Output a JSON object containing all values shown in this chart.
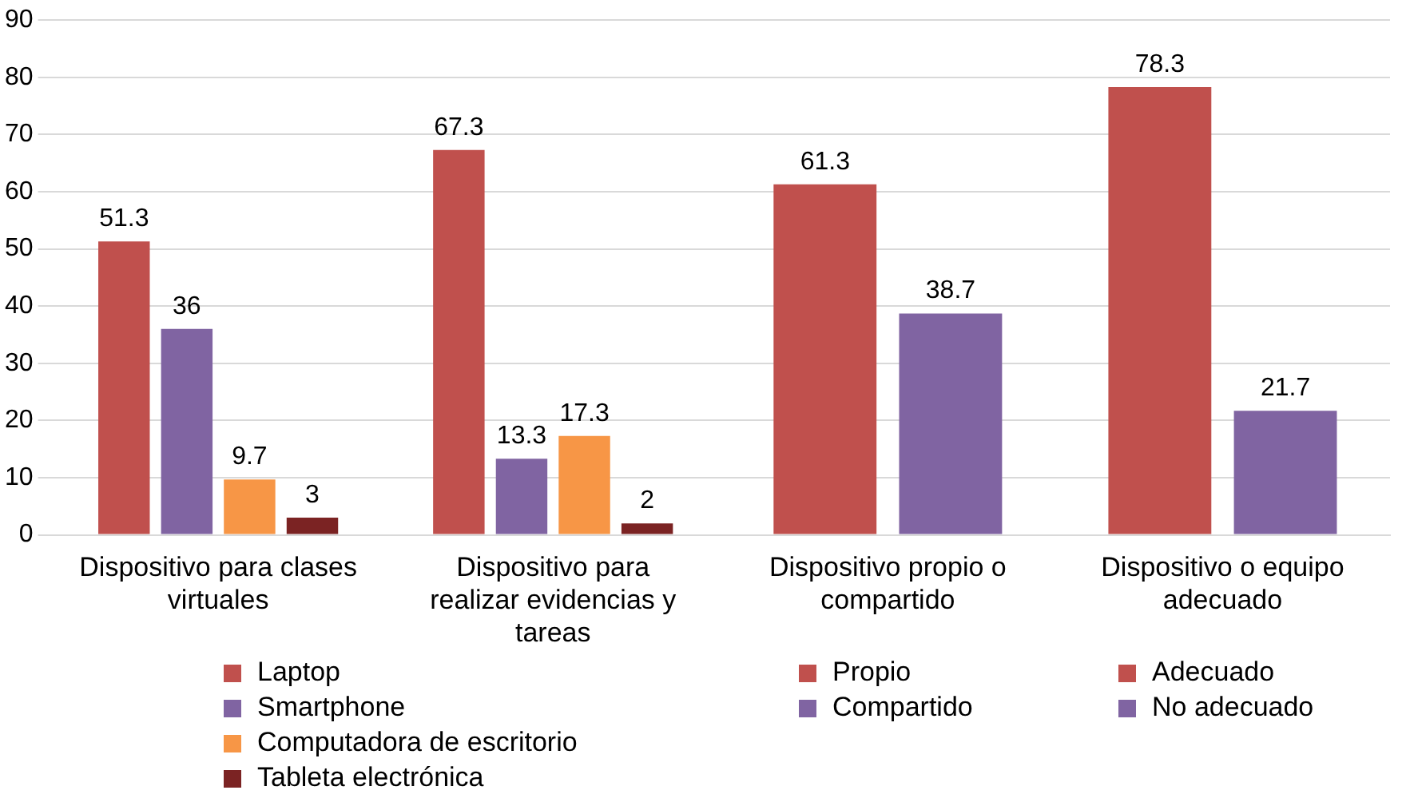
{
  "chart_data": {
    "type": "bar",
    "categories": [
      "Dispositivo para clases virtuales",
      "Dispositivo para realizar evidencias y tareas",
      "Dispositivo propio o compartido",
      "Dispositivo o equipo adecuado"
    ],
    "series": [
      {
        "name": "Laptop",
        "color": "#c0504d",
        "values": [
          51.3,
          67.3,
          null,
          null
        ]
      },
      {
        "name": "Smartphone",
        "color": "#8064a2",
        "values": [
          36,
          13.3,
          null,
          null
        ]
      },
      {
        "name": "Computadora de escritorio",
        "color": "#f79646",
        "values": [
          9.7,
          17.3,
          null,
          null
        ]
      },
      {
        "name": "Tableta electrónica",
        "color": "#7b2323",
        "values": [
          3,
          2,
          null,
          null
        ]
      },
      {
        "name": "Propio",
        "color": "#c0504d",
        "values": [
          null,
          null,
          61.3,
          null
        ]
      },
      {
        "name": "Compartido",
        "color": "#8064a2",
        "values": [
          null,
          null,
          38.7,
          null
        ]
      },
      {
        "name": "Adecuado",
        "color": "#c0504d",
        "values": [
          null,
          null,
          null,
          78.3
        ]
      },
      {
        "name": "No adecuado",
        "color": "#8064a2",
        "values": [
          null,
          null,
          null,
          21.7
        ]
      }
    ],
    "ylim": [
      0,
      90
    ],
    "yticks": [
      0,
      10,
      20,
      30,
      40,
      50,
      60,
      70,
      80,
      90
    ],
    "grid": "y",
    "legend": "bottom",
    "data_labels": true
  }
}
